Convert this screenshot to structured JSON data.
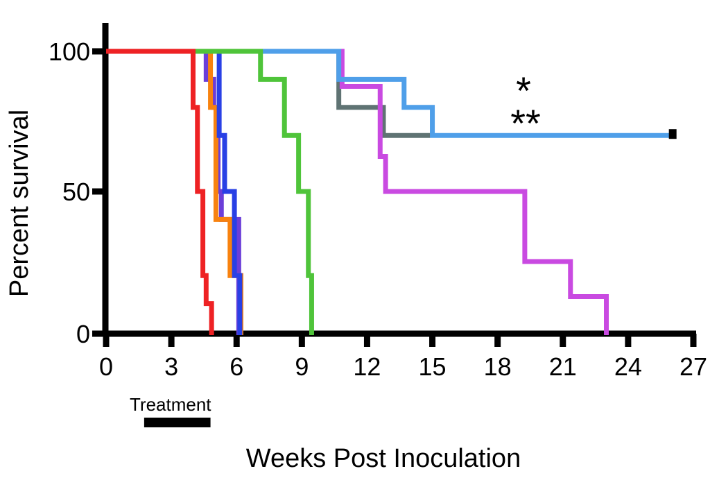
{
  "figure": {
    "ylabel": "Percent survival",
    "xlabel": "Weeks Post Inoculation",
    "treatment_label": "Treatment"
  },
  "chart_data": {
    "type": "line",
    "subtype": "kaplan-meier-survival-steps",
    "title": "",
    "xlabel": "Weeks Post Inoculation",
    "ylabel": "Percent survival",
    "xlim": [
      0,
      27
    ],
    "ylim": [
      0,
      100
    ],
    "x_ticks": [
      0,
      3,
      6,
      9,
      12,
      15,
      18,
      21,
      24,
      27
    ],
    "y_ticks": [
      0,
      50,
      100
    ],
    "grid": false,
    "legend": "none",
    "axis_color": "#000000",
    "series": [
      {
        "name": "gray-group",
        "color": "#5f7373",
        "drops": [
          [
            10.7,
            80
          ],
          [
            12.75,
            70
          ]
        ],
        "end_week": 14.9
      },
      {
        "name": "magenta-group",
        "color": "#c94ae1",
        "drops": [
          [
            10.85,
            87.5
          ],
          [
            12.6,
            62.5
          ],
          [
            12.85,
            50
          ],
          [
            19.25,
            25
          ],
          [
            21.35,
            12.5
          ],
          [
            23.0,
            0
          ]
        ]
      },
      {
        "name": "skyblue-group",
        "color": "#4f9fe9",
        "drops": [
          [
            10.7,
            90
          ],
          [
            13.7,
            80
          ],
          [
            15.0,
            70
          ]
        ],
        "end_week": 26.1,
        "censor_weeks": [
          26.05
        ]
      },
      {
        "name": "violet-group",
        "color": "#6b3ed8",
        "drops": [
          [
            4.6,
            90
          ],
          [
            4.95,
            80
          ],
          [
            5.15,
            50
          ],
          [
            5.3,
            40
          ],
          [
            6.1,
            0
          ]
        ]
      },
      {
        "name": "orange-group",
        "color": "#f8820f",
        "drops": [
          [
            4.8,
            80
          ],
          [
            5.05,
            40
          ],
          [
            5.7,
            20
          ],
          [
            6.2,
            0
          ]
        ]
      },
      {
        "name": "blue-group",
        "color": "#2940e5",
        "drops": [
          [
            5.2,
            70
          ],
          [
            5.45,
            50
          ],
          [
            5.9,
            20
          ],
          [
            6.15,
            0
          ]
        ]
      },
      {
        "name": "green-group",
        "color": "#4fc43a",
        "drops": [
          [
            7.1,
            90
          ],
          [
            8.2,
            70
          ],
          [
            8.85,
            50
          ],
          [
            9.3,
            20
          ],
          [
            9.45,
            0
          ]
        ]
      },
      {
        "name": "red-group",
        "color": "#ee2224",
        "drops": [
          [
            4.0,
            80
          ],
          [
            4.2,
            50
          ],
          [
            4.45,
            20
          ],
          [
            4.6,
            10
          ],
          [
            4.85,
            0
          ]
        ]
      }
    ],
    "annotations": {
      "significance": [
        {
          "text": "*",
          "x_week": 19.2,
          "y_percent": 87
        },
        {
          "text": "**",
          "x_week": 19.3,
          "y_percent": 76
        }
      ],
      "treatment_bar": {
        "label": "Treatment",
        "start_week": 1.75,
        "end_week": 4.8,
        "color": "#000000"
      }
    }
  }
}
